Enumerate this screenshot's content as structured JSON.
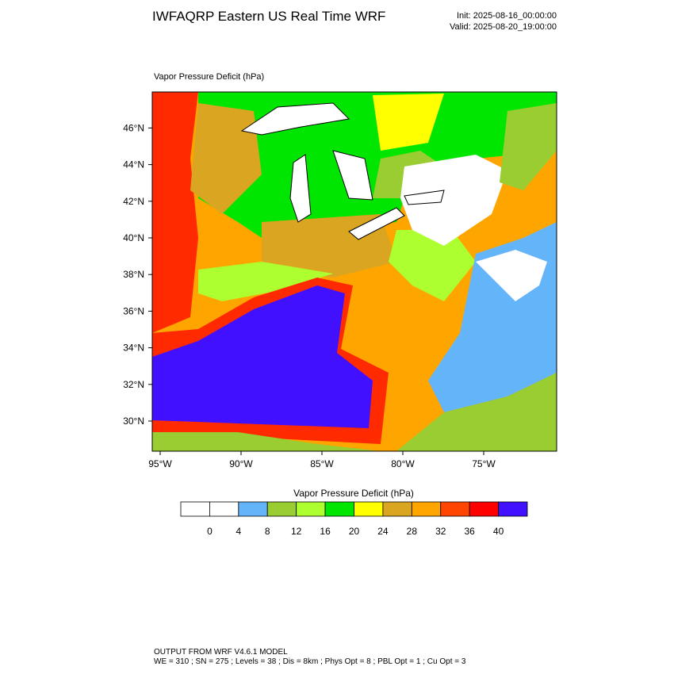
{
  "header": {
    "title": "IWFAQRP Eastern US Real Time WRF",
    "init": "Init: 2025-08-16_00:00:00",
    "valid": "Valid: 2025-08-20_19:00:00"
  },
  "map": {
    "label": "Vapor Pressure Deficit   (hPa)",
    "lat_ticks": [
      {
        "value": 30,
        "label": "30°N"
      },
      {
        "value": 32,
        "label": "32°N"
      },
      {
        "value": 34,
        "label": "34°N"
      },
      {
        "value": 36,
        "label": "36°N"
      },
      {
        "value": 38,
        "label": "38°N"
      },
      {
        "value": 40,
        "label": "40°N"
      },
      {
        "value": 42,
        "label": "42°N"
      },
      {
        "value": 44,
        "label": "44°N"
      },
      {
        "value": 46,
        "label": "46°N"
      }
    ],
    "lon_ticks": [
      {
        "value": -95,
        "label": "95°W"
      },
      {
        "value": -90,
        "label": "90°W"
      },
      {
        "value": -85,
        "label": "85°W"
      },
      {
        "value": -80,
        "label": "80°W"
      },
      {
        "value": -75,
        "label": "75°W"
      }
    ]
  },
  "colorbar": {
    "title": "Vapor Pressure Deficit  (hPa)",
    "colors": [
      "#ffffff",
      "#ffffff",
      "#64b4fa",
      "#9acd32",
      "#adff2f",
      "#00e600",
      "#ffff00",
      "#daa520",
      "#ffa500",
      "#ff4500",
      "#ff0000",
      "#4010ff"
    ],
    "ticks": [
      0,
      4,
      8,
      12,
      16,
      20,
      24,
      28,
      32,
      36,
      40
    ]
  },
  "footer": {
    "lines": [
      "OUTPUT FROM WRF V4.6.1 MODEL",
      "WE = 310 ; SN = 275 ; Levels = 38 ; Dis = 8km ; Phys Opt = 8 ; PBL Opt = 1 ; Cu Opt = 3"
    ]
  }
}
